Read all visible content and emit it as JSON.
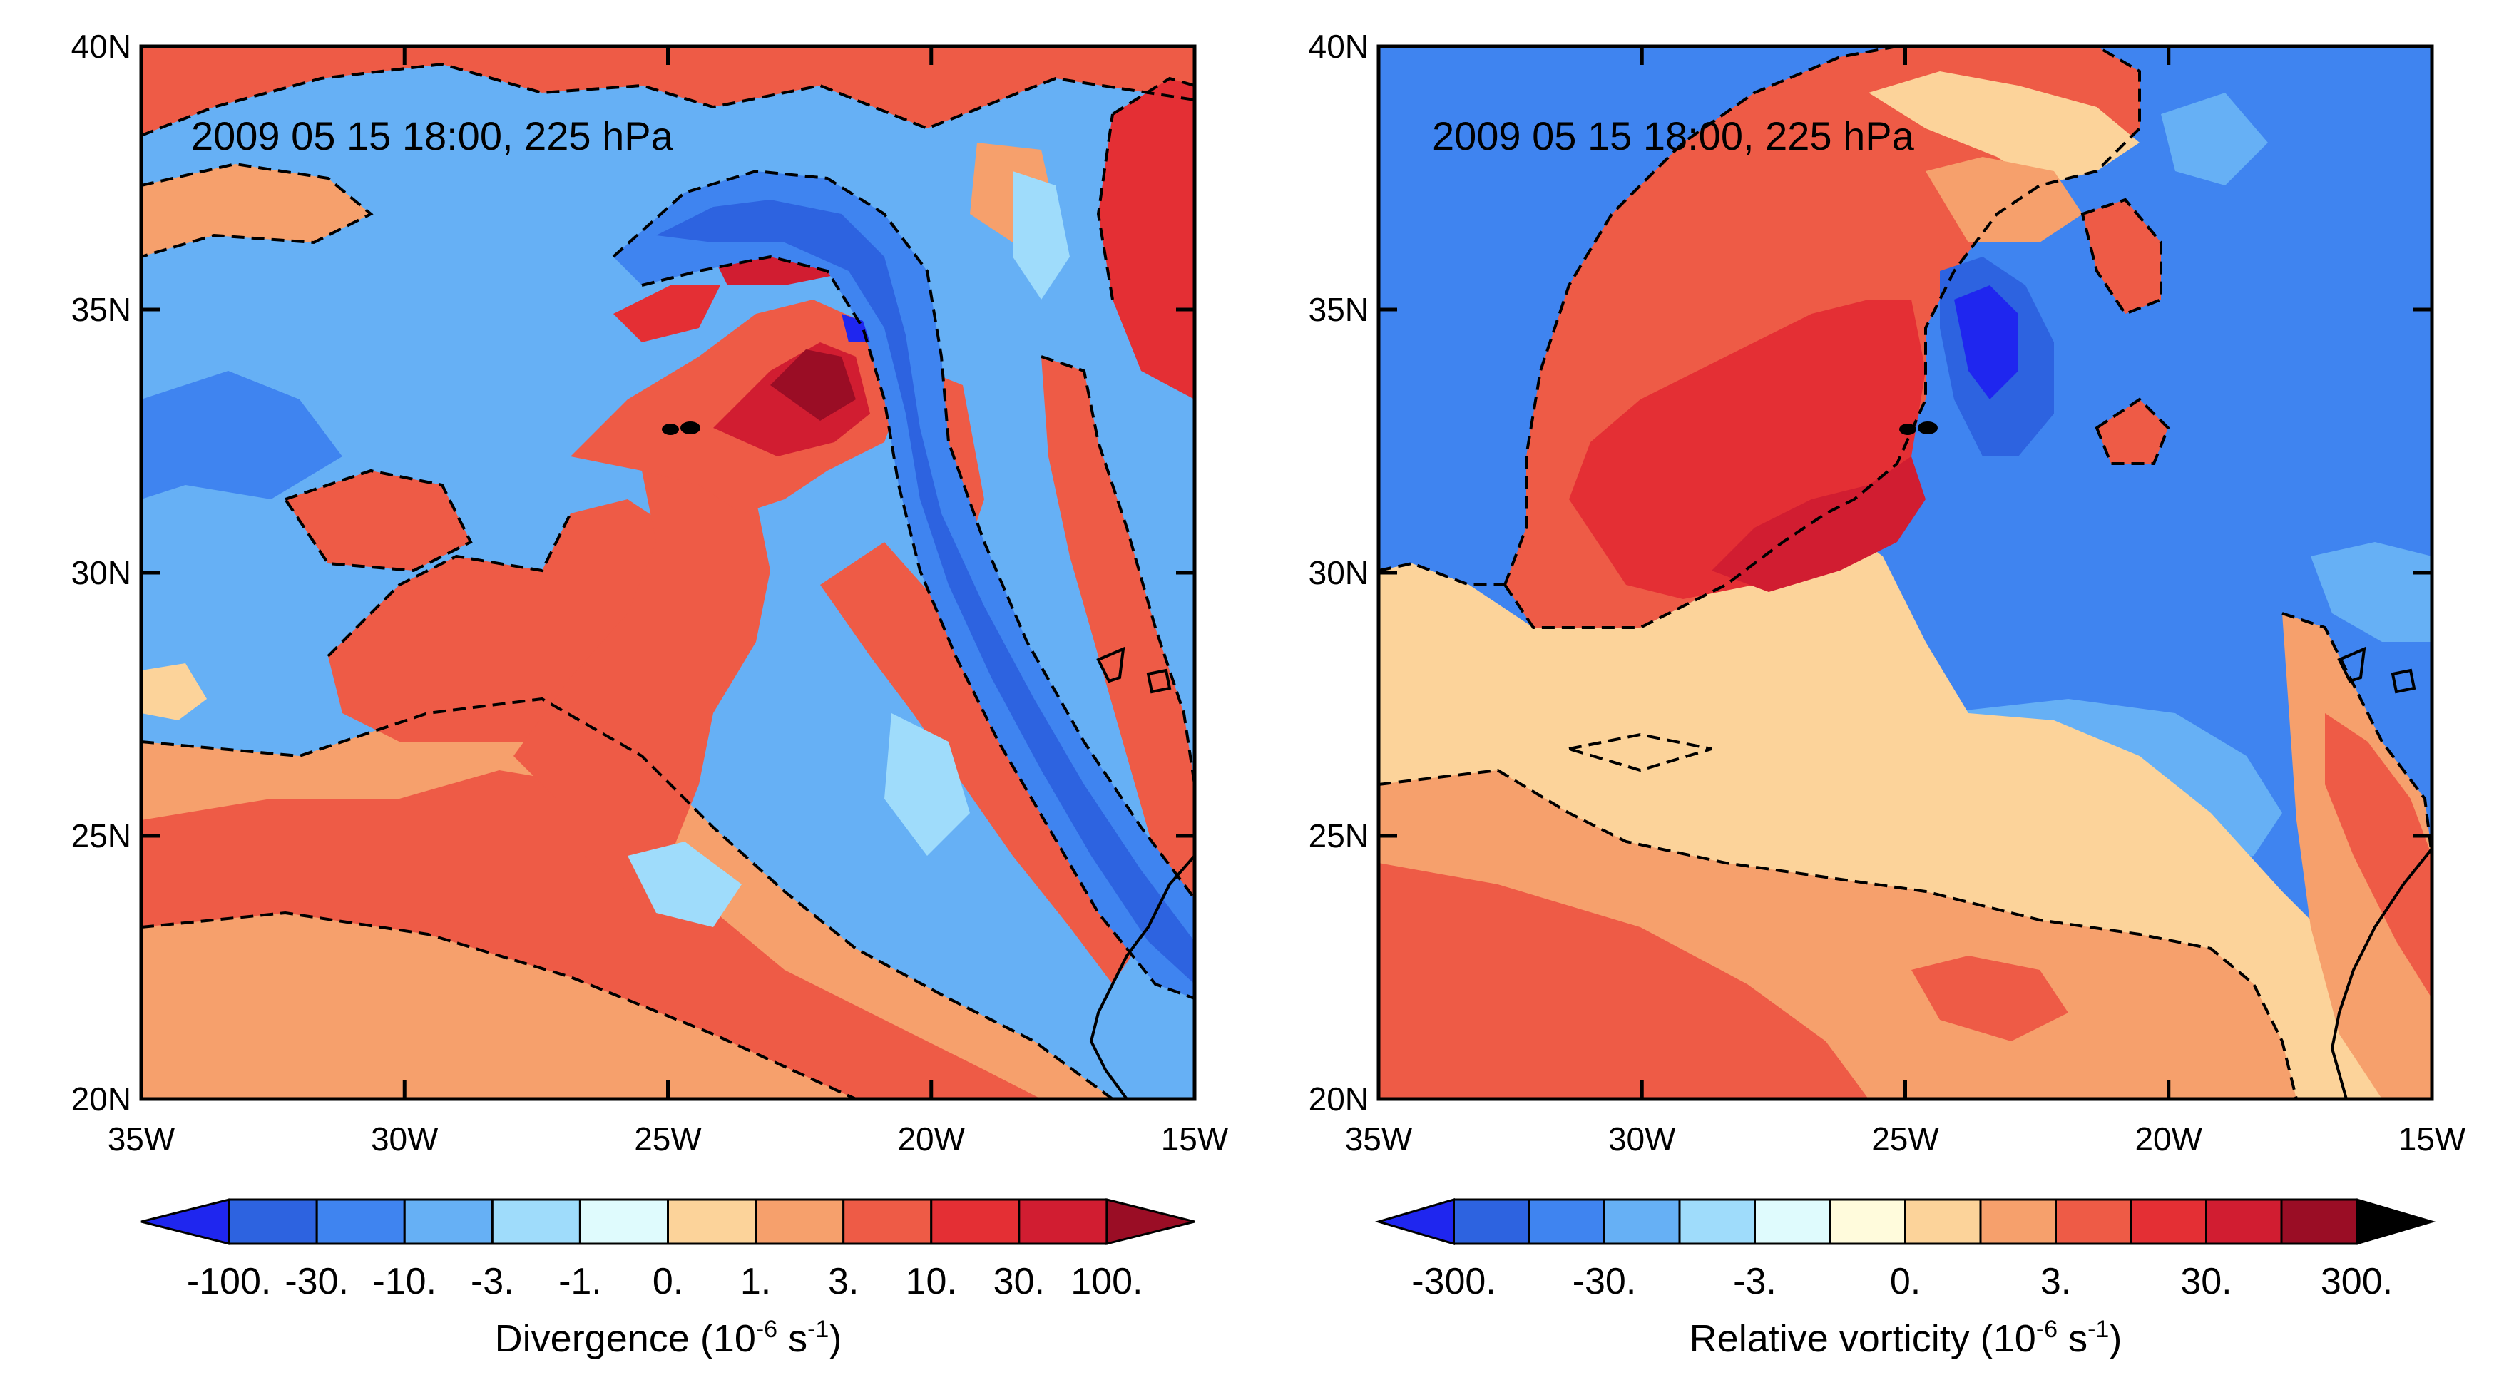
{
  "palette": [
    "#1f26ef",
    "#2d63e0",
    "#3f84f0",
    "#66b0f5",
    "#9fdcfb",
    "#dffbfd",
    "#fffbdc",
    "#fcd39a",
    "#f6a06c",
    "#ee5b46",
    "#e42f34",
    "#d11d31",
    "#9a0d25"
  ],
  "panels": [
    {
      "field": "Divergence",
      "title": "2009 05 15 18:00, 225 hPa",
      "colorbar_label_main": "Divergence (10",
      "colorbar_label_exp": "-6",
      "colorbar_label_mid": " s",
      "colorbar_label_exp2": "-1",
      "colorbar_label_end": ")",
      "colorbar_levels": [
        "-100.",
        "-30.",
        "-10.",
        "-3.",
        "-1.",
        "0.",
        "1.",
        "3.",
        "10.",
        "30.",
        "100."
      ],
      "colorbar_label_every": 1
    },
    {
      "field": "Relative vorticity",
      "title": "2009 05 15 18:00, 225 hPa",
      "colorbar_label_main": "Relative vorticity (10",
      "colorbar_label_exp": "-6",
      "colorbar_label_mid": " s",
      "colorbar_label_exp2": "-1",
      "colorbar_label_end": ")",
      "colorbar_levels": [
        "-300.",
        "-100.",
        "-30.",
        "-10.",
        "-3.",
        "-1.",
        "0.",
        "1.",
        "3.",
        "10.",
        "30.",
        "100.",
        "300."
      ],
      "colorbar_label_every": 2
    }
  ],
  "x_ticks": [
    "35W",
    "30W",
    "25W",
    "20W",
    "15W"
  ],
  "y_ticks": [
    "40N",
    "35N",
    "30N",
    "25N",
    "20N"
  ],
  "lon_range": [
    -35,
    -15
  ],
  "lat_range": [
    20,
    40
  ]
}
